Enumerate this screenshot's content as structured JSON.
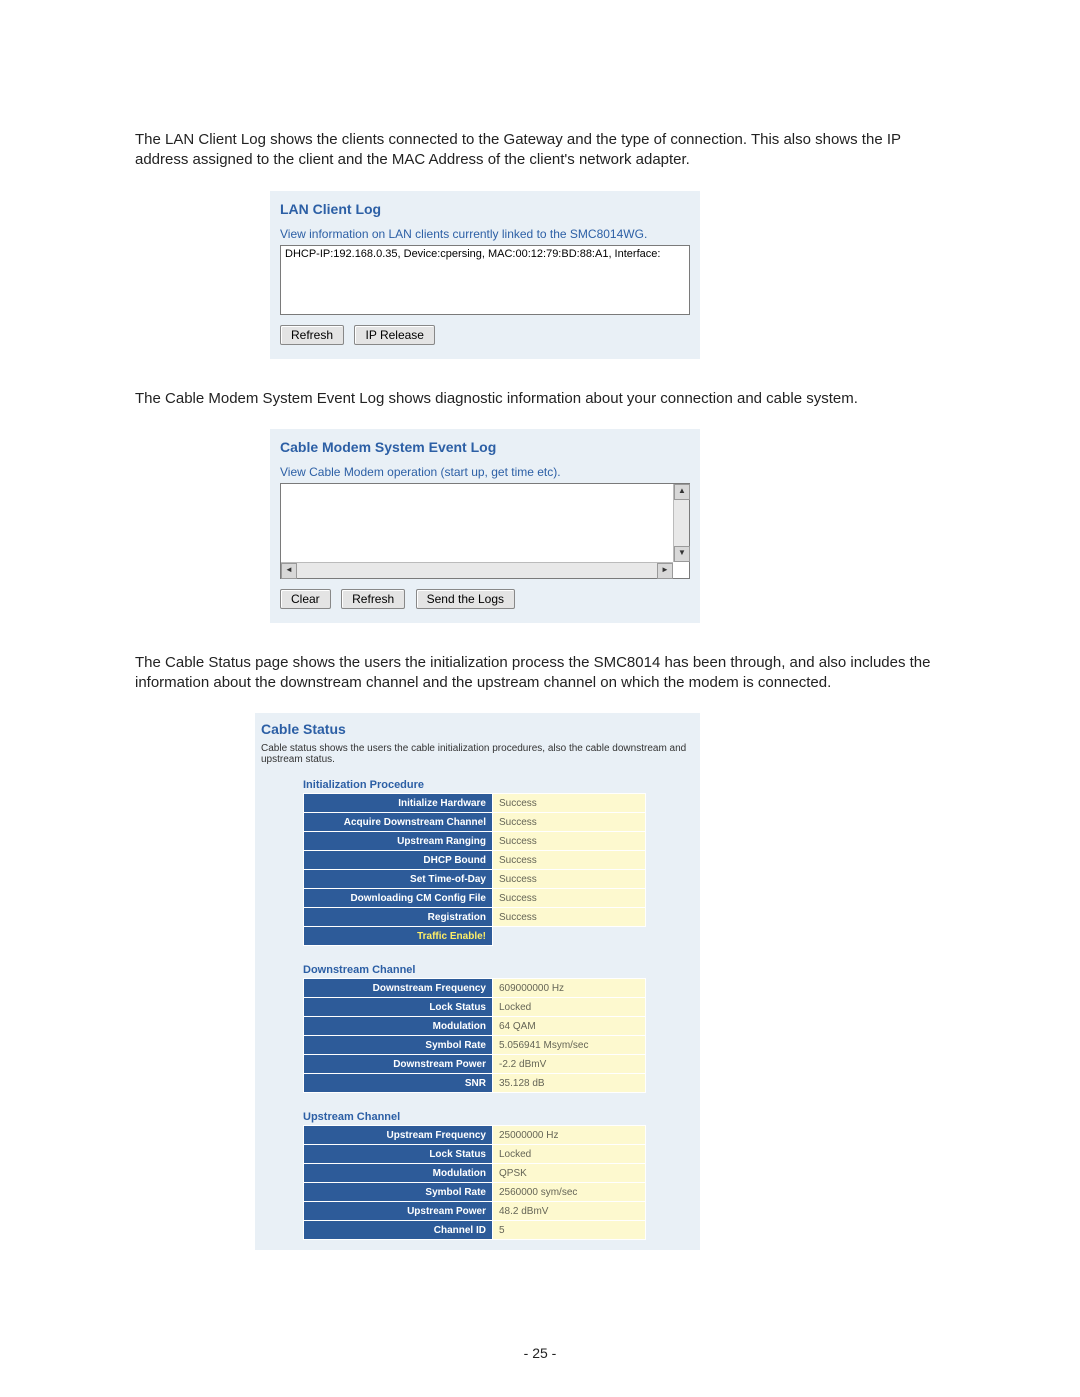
{
  "paragraphs": {
    "p1": "The LAN Client Log shows the clients connected to the Gateway and the type of connection. This also shows the IP address assigned to the client and the MAC Address of the client's network adapter.",
    "p2": "The Cable Modem System Event Log shows diagnostic information about your connection and cable system.",
    "p3": "The Cable Status page shows the users the initialization process the SMC8014 has been through, and also includes the information about the downstream channel and the upstream channel on which the modem is connected."
  },
  "lan_panel": {
    "title": "LAN Client Log",
    "subtitle": "View information on LAN clients currently linked to the SMC8014WG.",
    "entry": "DHCP-IP:192.168.0.35, Device:cpersing, MAC:00:12:79:BD:88:A1, Interface:",
    "buttons": {
      "refresh": "Refresh",
      "ip_release": "IP Release"
    }
  },
  "event_panel": {
    "title": "Cable Modem System Event Log",
    "subtitle": "View Cable Modem operation (start up, get time etc).",
    "buttons": {
      "clear": "Clear",
      "refresh": "Refresh",
      "send": "Send the Logs"
    }
  },
  "cable_panel": {
    "title": "Cable Status",
    "subtitle": "Cable status shows the users the cable initialization procedures, also the cable downstream and upstream status.",
    "init": {
      "header": "Initialization Procedure",
      "rows": [
        {
          "k": "Initialize Hardware",
          "v": "Success"
        },
        {
          "k": "Acquire Downstream Channel",
          "v": "Success"
        },
        {
          "k": "Upstream Ranging",
          "v": "Success"
        },
        {
          "k": "DHCP Bound",
          "v": "Success"
        },
        {
          "k": "Set Time-of-Day",
          "v": "Success"
        },
        {
          "k": "Downloading CM Config File",
          "v": "Success"
        },
        {
          "k": "Registration",
          "v": "Success"
        }
      ],
      "traffic": "Traffic Enable!"
    },
    "down": {
      "header": "Downstream Channel",
      "rows": [
        {
          "k": "Downstream Frequency",
          "v": "609000000 Hz"
        },
        {
          "k": "Lock Status",
          "v": "Locked"
        },
        {
          "k": "Modulation",
          "v": "64 QAM"
        },
        {
          "k": "Symbol Rate",
          "v": "5.056941 Msym/sec"
        },
        {
          "k": "Downstream Power",
          "v": "-2.2 dBmV"
        },
        {
          "k": "SNR",
          "v": "35.128 dB"
        }
      ]
    },
    "up": {
      "header": "Upstream Channel",
      "rows": [
        {
          "k": "Upstream Frequency",
          "v": "25000000 Hz"
        },
        {
          "k": "Lock Status",
          "v": "Locked"
        },
        {
          "k": "Modulation",
          "v": "QPSK"
        },
        {
          "k": "Symbol Rate",
          "v": "2560000 sym/sec"
        },
        {
          "k": "Upstream Power",
          "v": "48.2 dBmV"
        },
        {
          "k": "Channel ID",
          "v": "5"
        }
      ]
    }
  },
  "page_number": "- 25 -",
  "colors": {
    "panel_bg": "#e9f0f6",
    "link_blue": "#2c5fa5",
    "row_key_bg": "#2d5b99",
    "row_val_bg": "#fdf9cf",
    "traffic_color": "#ffee66"
  }
}
